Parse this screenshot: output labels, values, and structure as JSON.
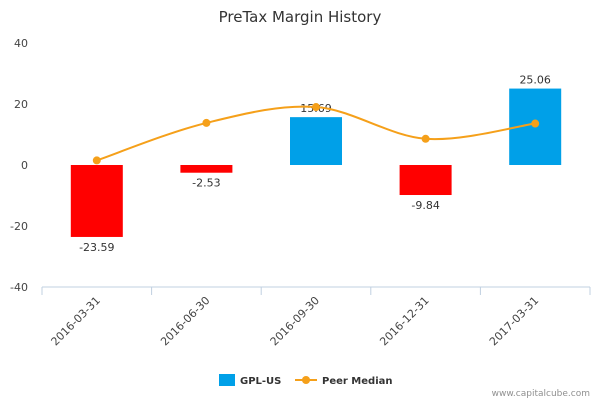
{
  "chart_data": {
    "type": "bar",
    "title": "PreTax Margin History",
    "categories": [
      "2016-03-31",
      "2016-06-30",
      "2016-09-30",
      "2016-12-31",
      "2017-03-31"
    ],
    "series": [
      {
        "name": "GPL-US",
        "type": "bar",
        "values": [
          -23.59,
          -2.53,
          15.69,
          -9.84,
          25.06
        ],
        "data_labels": [
          "-23.59",
          "-2.53",
          "15.69",
          "-9.84",
          "25.06"
        ]
      },
      {
        "name": "Peer Median",
        "type": "line",
        "values": [
          1.5,
          13.8,
          19.0,
          8.6,
          13.6
        ]
      }
    ],
    "yticks": [
      40,
      20,
      0,
      -20,
      -40
    ],
    "ylim": [
      -40,
      40
    ],
    "legend_position": "bottom",
    "colors": {
      "positive": "#00a0e8",
      "negative": "#ff0000",
      "peer": "#f5a01a",
      "axis": "#c0d0e0"
    },
    "credit": "www.capitalcube.com"
  }
}
